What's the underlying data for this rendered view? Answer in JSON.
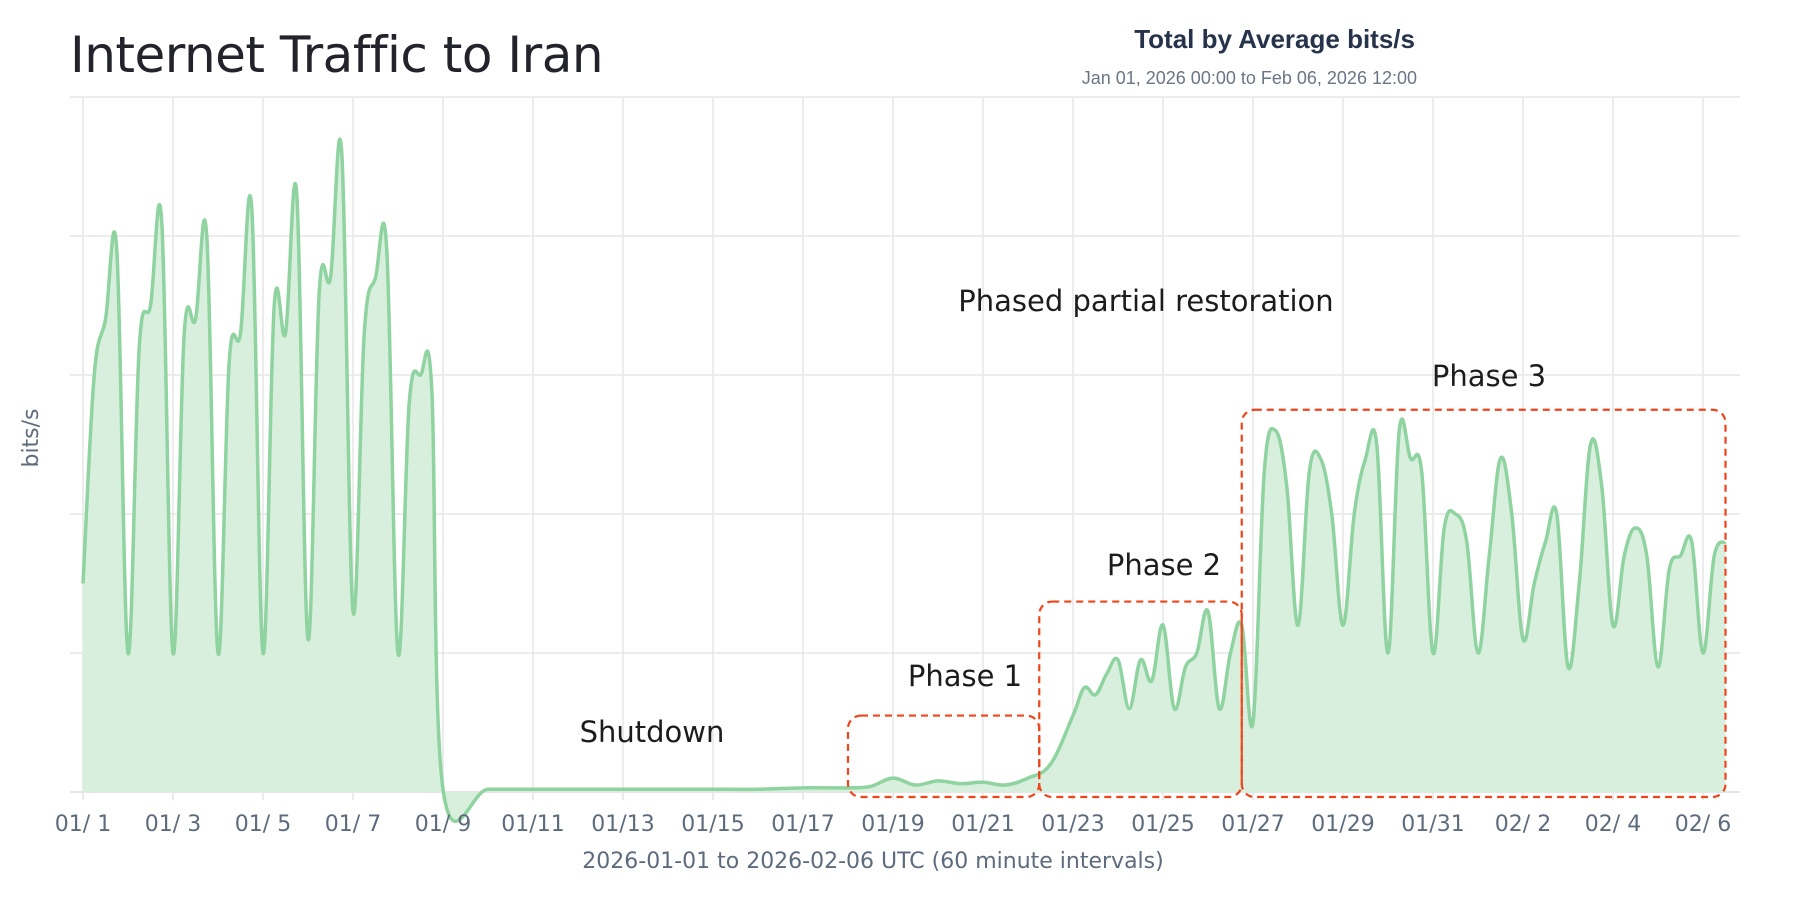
{
  "header": {
    "title": "Internet Traffic to Iran",
    "stat_title": "Total by Average bits/s",
    "stat_range": "Jan 01, 2026 00:00 to Feb 06, 2026 12:00"
  },
  "colors": {
    "line": "#8fd3a0",
    "fill": "#d8efdd",
    "grid": "#e6e6e6",
    "annotation_box": "#f0441b"
  },
  "chart_data": {
    "type": "area",
    "title": "Internet Traffic to Iran",
    "xlabel": "2026-01-01 to 2026-02-06 UTC (60 minute intervals)",
    "ylabel": "bits/s",
    "y_tick_labels_shown": false,
    "grid": true,
    "ylim": [
      0,
      5
    ],
    "x_tick_labels": [
      "01/ 1",
      "01/ 3",
      "01/ 5",
      "01/ 7",
      "01/ 9",
      "01/11",
      "01/13",
      "01/15",
      "01/17",
      "01/19",
      "01/21",
      "01/23",
      "01/25",
      "01/27",
      "01/29",
      "01/31",
      "02/ 2",
      "02/ 4",
      "02/ 6"
    ],
    "series": [
      {
        "x": [
          "01/01 00:00",
          "01/01 06:00",
          "01/01 12:00",
          "01/01 18:00",
          "01/02 00:00",
          "01/02 06:00",
          "01/02 12:00",
          "01/02 18:00",
          "01/03 00:00",
          "01/03 06:00",
          "01/03 12:00",
          "01/03 18:00",
          "01/04 00:00",
          "01/04 06:00",
          "01/04 12:00",
          "01/04 18:00",
          "01/05 00:00",
          "01/05 06:00",
          "01/05 12:00",
          "01/05 18:00",
          "01/06 00:00",
          "01/06 06:00",
          "01/06 12:00",
          "01/06 18:00",
          "01/07 00:00",
          "01/07 06:00",
          "01/07 12:00",
          "01/07 18:00",
          "01/08 00:00",
          "01/08 06:00",
          "01/08 12:00",
          "01/08 18:00",
          "01/09 00:00",
          "01/10 00:00",
          "01/11 00:00",
          "01/12 00:00",
          "01/13 00:00",
          "01/14 00:00",
          "01/15 00:00",
          "01/16 00:00",
          "01/17 00:00",
          "01/18 00:00",
          "01/18 12:00",
          "01/19 00:00",
          "01/19 12:00",
          "01/20 00:00",
          "01/20 12:00",
          "01/21 00:00",
          "01/21 12:00",
          "01/22 00:00",
          "01/22 12:00",
          "01/23 00:00",
          "01/23 06:00",
          "01/23 12:00",
          "01/23 18:00",
          "01/24 00:00",
          "01/24 06:00",
          "01/24 12:00",
          "01/24 18:00",
          "01/25 00:00",
          "01/25 06:00",
          "01/25 12:00",
          "01/25 18:00",
          "01/26 00:00",
          "01/26 06:00",
          "01/26 12:00",
          "01/26 18:00",
          "01/27 00:00",
          "01/27 06:00",
          "01/27 12:00",
          "01/27 18:00",
          "01/28 00:00",
          "01/28 06:00",
          "01/28 12:00",
          "01/28 18:00",
          "01/29 00:00",
          "01/29 06:00",
          "01/29 12:00",
          "01/29 18:00",
          "01/30 00:00",
          "01/30 06:00",
          "01/30 12:00",
          "01/30 18:00",
          "01/31 00:00",
          "01/31 06:00",
          "01/31 12:00",
          "01/31 18:00",
          "02/01 00:00",
          "02/01 06:00",
          "02/01 12:00",
          "02/01 18:00",
          "02/02 00:00",
          "02/02 06:00",
          "02/02 12:00",
          "02/02 18:00",
          "02/03 00:00",
          "02/03 06:00",
          "02/03 12:00",
          "02/03 18:00",
          "02/04 00:00",
          "02/04 06:00",
          "02/04 12:00",
          "02/04 18:00",
          "02/05 00:00",
          "02/05 06:00",
          "02/05 12:00",
          "02/05 18:00",
          "02/06 00:00",
          "02/06 06:00",
          "02/06 12:00"
        ],
        "values": [
          1.5,
          3.0,
          3.4,
          3.9,
          1.0,
          3.2,
          3.5,
          4.1,
          1.0,
          3.3,
          3.4,
          4.0,
          1.0,
          3.1,
          3.3,
          4.2,
          1.0,
          3.5,
          3.3,
          4.3,
          1.1,
          3.6,
          3.7,
          4.6,
          1.3,
          3.3,
          3.7,
          3.9,
          1.0,
          2.8,
          3.0,
          2.9,
          0.02,
          0.02,
          0.02,
          0.02,
          0.02,
          0.02,
          0.02,
          0.02,
          0.03,
          0.03,
          0.04,
          0.1,
          0.05,
          0.08,
          0.06,
          0.07,
          0.05,
          0.1,
          0.2,
          0.55,
          0.75,
          0.7,
          0.85,
          0.95,
          0.6,
          0.95,
          0.8,
          1.2,
          0.6,
          0.9,
          1.0,
          1.3,
          0.6,
          1.0,
          1.2,
          0.5,
          2.3,
          2.6,
          2.2,
          1.2,
          2.3,
          2.4,
          2.0,
          1.2,
          2.0,
          2.4,
          2.5,
          1.0,
          2.6,
          2.4,
          2.3,
          1.0,
          1.9,
          2.0,
          1.8,
          1.0,
          1.7,
          2.4,
          2.0,
          1.1,
          1.5,
          1.8,
          2.0,
          0.9,
          1.5,
          2.5,
          2.2,
          1.2,
          1.7,
          1.9,
          1.7,
          0.9,
          1.6,
          1.7,
          1.8,
          1.0,
          1.7,
          1.8
        ]
      }
    ],
    "annotations": [
      {
        "label": "Shutdown"
      },
      {
        "label": "Phased partial restoration"
      },
      {
        "label": "Phase 1",
        "x_range": [
          "01/18 00:00",
          "01/22 06:00"
        ],
        "y_range": [
          0,
          0.55
        ]
      },
      {
        "label": "Phase 2",
        "x_range": [
          "01/22 06:00",
          "01/26 18:00"
        ],
        "y_range": [
          0,
          1.37
        ]
      },
      {
        "label": "Phase 3",
        "x_range": [
          "01/26 18:00",
          "02/06 12:00"
        ],
        "y_range": [
          0,
          2.75
        ]
      }
    ]
  }
}
